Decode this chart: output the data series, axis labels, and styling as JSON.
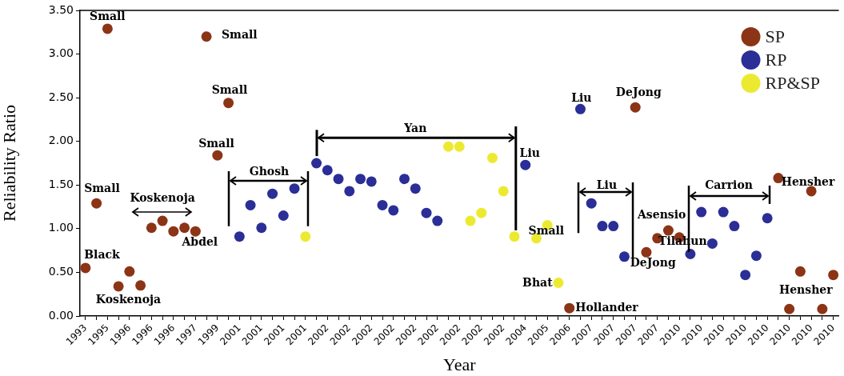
{
  "chart_data": {
    "type": "scatter",
    "xlabel": "Year",
    "ylabel": "Reliability Ratio",
    "legend": "top right",
    "marker": "circle",
    "categories": [
      "1993",
      null,
      "1995",
      null,
      "1996",
      null,
      "1996",
      null,
      "1996",
      null,
      "1997",
      null,
      "1999",
      null,
      "2001",
      null,
      "2001",
      null,
      "2001",
      null,
      "2001",
      null,
      "2002",
      null,
      "2002",
      null,
      "2002",
      null,
      "2002",
      null,
      "2002",
      null,
      "2002",
      null,
      "2002",
      null,
      "2002",
      null,
      "2002",
      null,
      "2004",
      null,
      "2005",
      null,
      "2006",
      null,
      "2007",
      null,
      "2007",
      null,
      "2007",
      null,
      "2007",
      null,
      "2010",
      null,
      "2010",
      null,
      "2010",
      null,
      "2010",
      null,
      "2010",
      null,
      "2010",
      null,
      "2010",
      null,
      "2010"
    ],
    "ylim": [
      0,
      3.5
    ],
    "yticks": [
      {
        "value": 0,
        "label": "0.00"
      },
      {
        "value": 0.5,
        "label": "0.50"
      },
      {
        "value": 1,
        "label": "1.00"
      },
      {
        "value": 1.5,
        "label": "1.50"
      },
      {
        "value": 2,
        "label": "2.00"
      },
      {
        "value": 2.5,
        "label": "2.50"
      },
      {
        "value": 3,
        "label": "3.00"
      },
      {
        "value": 3.5,
        "label": "3.50"
      }
    ],
    "series": [
      {
        "name": "SP",
        "color": "#8c3416",
        "values": [
          0.55,
          1.29,
          3.29,
          0.34,
          0.51,
          0.35,
          1.01,
          1.09,
          0.97,
          1.01,
          0.97,
          3.2,
          1.84,
          2.44,
          null,
          null,
          null,
          null,
          null,
          null,
          null,
          null,
          null,
          null,
          null,
          null,
          null,
          null,
          null,
          null,
          null,
          null,
          null,
          null,
          null,
          null,
          null,
          null,
          null,
          null,
          null,
          null,
          null,
          null,
          0.09,
          null,
          null,
          null,
          null,
          null,
          2.39,
          0.73,
          0.89,
          0.98,
          0.9,
          null,
          null,
          null,
          null,
          null,
          null,
          null,
          null,
          1.58,
          0.08,
          0.51,
          1.43,
          0.08,
          0.47
        ]
      },
      {
        "name": "RP",
        "color": "#2a2e96",
        "values": [
          null,
          null,
          null,
          null,
          null,
          null,
          null,
          null,
          null,
          null,
          null,
          null,
          null,
          null,
          0.91,
          1.27,
          1.01,
          1.4,
          1.15,
          1.46,
          null,
          1.75,
          1.67,
          1.57,
          1.43,
          1.57,
          1.54,
          1.27,
          1.21,
          1.57,
          1.46,
          1.18,
          1.09,
          null,
          null,
          null,
          null,
          null,
          null,
          null,
          1.73,
          null,
          null,
          null,
          null,
          2.37,
          1.29,
          1.03,
          1.03,
          0.68,
          null,
          null,
          null,
          null,
          null,
          0.71,
          1.19,
          0.83,
          1.19,
          1.03,
          0.47,
          0.69,
          1.12,
          null,
          null,
          null,
          null,
          null,
          null
        ]
      },
      {
        "name": "RP&SP",
        "color": "#ecea30",
        "values": [
          null,
          null,
          null,
          null,
          null,
          null,
          null,
          null,
          null,
          null,
          null,
          null,
          null,
          null,
          null,
          null,
          null,
          null,
          null,
          null,
          0.91,
          null,
          null,
          null,
          null,
          null,
          null,
          null,
          null,
          null,
          null,
          null,
          null,
          1.94,
          1.94,
          1.09,
          1.18,
          1.81,
          1.43,
          0.91,
          null,
          0.89,
          1.04,
          0.38,
          null,
          null,
          null,
          null,
          null,
          null,
          null,
          null,
          null,
          null,
          null,
          null,
          null,
          null,
          null,
          null,
          null,
          null,
          null,
          null,
          null,
          null,
          null,
          null,
          null
        ]
      }
    ],
    "annotations": [
      "Small",
      "Small",
      "Black",
      "Koskenoja",
      "Koskenoja",
      "Abdel",
      "Small",
      "Small",
      "Small",
      "Ghosh",
      "Yan",
      "Liu",
      "Small",
      "Bhat",
      "Hollander",
      "Liu",
      "DeJong",
      "Liu",
      "Asensio",
      "DeJong",
      "Tilahun",
      "Carrion",
      "Hensher",
      "Hensher"
    ]
  }
}
